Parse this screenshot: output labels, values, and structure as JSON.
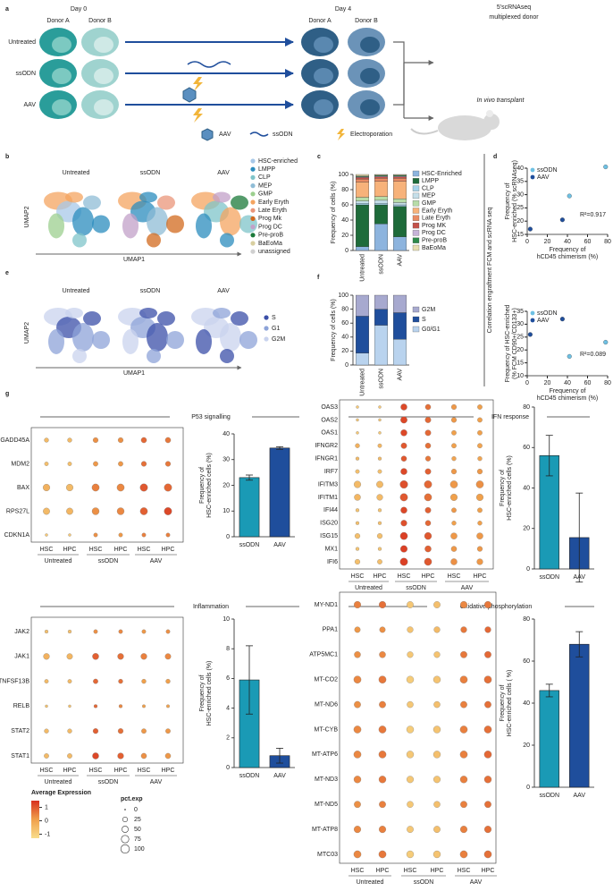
{
  "panels": [
    "a",
    "b",
    "c",
    "d",
    "e",
    "f",
    "g"
  ],
  "schematic": {
    "day0": "Day 0",
    "day4": "Day 4",
    "donors": [
      "Donor A",
      "Donor B",
      "Donor A",
      "Donor B"
    ],
    "conditions": [
      "Untreated",
      "ssODN",
      "AAV"
    ],
    "output_top": [
      "5'scRNAseq",
      "multiplexed donor"
    ],
    "output_bottom": "In vivo transplant",
    "legend": [
      "AAV",
      "ssODN",
      "Electroporation"
    ]
  },
  "umap_b": {
    "titles": [
      "Untreated",
      "ssODN",
      "AAV"
    ],
    "xlabel": "UMAP1",
    "ylabel": "UMAP2",
    "legend": [
      "HSC-enriched",
      "LMPP",
      "CLP",
      "MEP",
      "GMP",
      "Early Eryth",
      "Late Eryth",
      "Prog Mk",
      "Prog DC",
      "Pre-proB",
      "BaEoMa",
      "unassigned"
    ],
    "colors": [
      "#a8c8e8",
      "#2b8cbe",
      "#7fc4c9",
      "#8fbcd6",
      "#9ccf8f",
      "#f4a460",
      "#e9967a",
      "#d2691e",
      "#c2a0c8",
      "#1b7a3a",
      "#d8cfa0",
      "#d0d0d0"
    ]
  },
  "umap_e": {
    "titles": [
      "Untreated",
      "ssODN",
      "AAV"
    ],
    "xlabel": "UMAP1",
    "ylabel": "UMAP2",
    "legend": [
      "S",
      "G1",
      "G2M"
    ],
    "colors": [
      "#3b4fa8",
      "#8da3d8",
      "#c9d3ee"
    ]
  },
  "side_label": "Correlation engraftment FCM and scRNA seq",
  "expression_legend": {
    "title": "Average Expression",
    "ticks": [
      1,
      0,
      -1
    ],
    "lim": [
      -1.3,
      1.5
    ],
    "colors": [
      "#f8dd8c",
      "#f0a04b",
      "#d7301f"
    ]
  },
  "pct_legend": {
    "title": "pct.exp",
    "values": [
      0,
      25,
      50,
      75,
      100
    ]
  },
  "chart_data": [
    {
      "type": "bar",
      "stacked": true,
      "ylabel": "Frequency of cells (%)",
      "categories": [
        "Untreated",
        "ssODN",
        "AAV"
      ],
      "ylim": [
        0,
        100
      ],
      "yticks": [
        0,
        20,
        40,
        60,
        80,
        100
      ],
      "series": [
        {
          "name": "HSC-Enriched",
          "color": "#8db4de",
          "values": [
            5,
            35,
            18
          ]
        },
        {
          "name": "LMPP",
          "color": "#1e6b3a",
          "values": [
            55,
            25,
            40
          ]
        },
        {
          "name": "CLP",
          "color": "#a6d4ea",
          "values": [
            2,
            2,
            2
          ]
        },
        {
          "name": "MEP",
          "color": "#c5dfe9",
          "values": [
            3,
            4,
            3
          ]
        },
        {
          "name": "GMP",
          "color": "#b7dca8",
          "values": [
            5,
            5,
            5
          ]
        },
        {
          "name": "Early Eryth",
          "color": "#f7b27a",
          "values": [
            20,
            20,
            23
          ]
        },
        {
          "name": "Late Eryth",
          "color": "#e98b63",
          "values": [
            4,
            4,
            4
          ]
        },
        {
          "name": "Prog MK",
          "color": "#c4524a",
          "values": [
            2,
            2,
            2
          ]
        },
        {
          "name": "Prog DC",
          "color": "#c6b3d8",
          "values": [
            1,
            1,
            1
          ]
        },
        {
          "name": "Pre-proB",
          "color": "#2d8a4a",
          "values": [
            1,
            1,
            1
          ]
        },
        {
          "name": "BaEoMa",
          "color": "#e7dfb0",
          "values": [
            2,
            1,
            1
          ]
        }
      ]
    },
    {
      "type": "scatter",
      "xlabel": [
        "Frequency of",
        "hCD45 chimerism (%)"
      ],
      "ylabel": [
        "Frequency of",
        "HSC-enriched (% scRNAseq)"
      ],
      "xlim": [
        0,
        80
      ],
      "xticks": [
        0,
        20,
        40,
        60,
        80
      ],
      "ylim": [
        15,
        40
      ],
      "yticks": [
        15,
        20,
        25,
        30,
        35,
        40
      ],
      "annotation": "R²=0.917",
      "series": [
        {
          "name": "ssODN",
          "color": "#6ec1e4",
          "x": [
            42,
            78
          ],
          "values": [
            29.5,
            40.5
          ]
        },
        {
          "name": "AAV",
          "color": "#1f4e9c",
          "x": [
            3,
            35
          ],
          "values": [
            17,
            20.5
          ]
        }
      ]
    },
    {
      "type": "scatter",
      "xlabel": [
        "Frequency of",
        "hCD45 chimerism (%)"
      ],
      "ylabel": [
        "Frequency of HSC-enriched",
        "(% FCM CD90+/CD133+)"
      ],
      "xlim": [
        0,
        80
      ],
      "xticks": [
        0,
        20,
        40,
        60,
        80
      ],
      "ylim": [
        10,
        35
      ],
      "yticks": [
        10,
        15,
        20,
        25,
        30,
        35
      ],
      "annotation": "R²=0.089",
      "series": [
        {
          "name": "ssODN",
          "color": "#6ec1e4",
          "x": [
            42,
            78
          ],
          "values": [
            17.5,
            23
          ]
        },
        {
          "name": "AAV",
          "color": "#1f4e9c",
          "x": [
            3,
            35
          ],
          "values": [
            26,
            32
          ]
        }
      ]
    },
    {
      "type": "bar",
      "stacked": true,
      "ylabel": "Frequency of cells (%)",
      "categories": [
        "Untreated",
        "ssODN",
        "AAV"
      ],
      "ylim": [
        0,
        100
      ],
      "yticks": [
        0,
        20,
        40,
        60,
        80,
        100
      ],
      "series": [
        {
          "name": "G0/G1",
          "color": "#b9d3ee",
          "values": [
            17,
            57,
            37
          ]
        },
        {
          "name": "S",
          "color": "#1f4e9c",
          "values": [
            53,
            23,
            38
          ]
        },
        {
          "name": "G2M",
          "color": "#a7a9cf",
          "values": [
            30,
            20,
            25
          ]
        }
      ]
    },
    {
      "type": "dot",
      "title": "P53 signalling",
      "rows": [
        "GADD45A",
        "MDM2",
        "BAX",
        "RPS27L",
        "CDKN1A"
      ],
      "columns": [
        "HSC",
        "HPC",
        "HSC",
        "HPC",
        "HSC",
        "HPC"
      ],
      "groups": [
        "Untreated",
        "ssODN",
        "AAV"
      ],
      "size": [
        [
          20,
          20,
          30,
          30,
          35,
          35
        ],
        [
          15,
          15,
          25,
          25,
          30,
          30
        ],
        [
          60,
          60,
          70,
          70,
          75,
          75
        ],
        [
          55,
          55,
          65,
          65,
          70,
          75
        ],
        [
          5,
          5,
          15,
          15,
          15,
          15
        ]
      ],
      "expression": [
        [
          -0.5,
          -0.5,
          0.3,
          0.3,
          0.8,
          0.6
        ],
        [
          -0.6,
          -0.6,
          0.2,
          0.2,
          0.7,
          0.6
        ],
        [
          -0.3,
          -0.5,
          0.5,
          0.4,
          1,
          0.8
        ],
        [
          -0.5,
          -0.4,
          0.3,
          0.4,
          0.9,
          1.2
        ],
        [
          -0.8,
          -0.8,
          0.3,
          0.2,
          0.5,
          0.5
        ]
      ]
    },
    {
      "type": "bar",
      "ylabel": [
        "Frequency of",
        "HSC-enriched cells (%)"
      ],
      "categories": [
        "ssODN",
        "AAV"
      ],
      "values": [
        23,
        34.5
      ],
      "errors": [
        1,
        0.5
      ],
      "colors": [
        "#1a9ab5",
        "#1f4e9c"
      ],
      "ylim": [
        0,
        40
      ],
      "yticks": [
        0,
        10,
        20,
        30,
        40
      ]
    },
    {
      "type": "dot",
      "title": "IFN response",
      "rows": [
        "OAS3",
        "OAS2",
        "OAS1",
        "IFNGR2",
        "IFNGR1",
        "IRF7",
        "IFITM3",
        "IFITM1",
        "IFI44",
        "ISG20",
        "ISG15",
        "MX1",
        "IFI6"
      ],
      "columns": [
        "HSC",
        "HPC",
        "HSC",
        "HPC",
        "HSC",
        "HPC"
      ],
      "groups": [
        "Untreated",
        "ssODN",
        "AAV"
      ],
      "size": [
        [
          5,
          5,
          50,
          35,
          30,
          25
        ],
        [
          5,
          5,
          55,
          40,
          30,
          25
        ],
        [
          5,
          5,
          50,
          40,
          25,
          25
        ],
        [
          20,
          15,
          40,
          35,
          25,
          25
        ],
        [
          10,
          10,
          35,
          30,
          20,
          20
        ],
        [
          15,
          15,
          50,
          40,
          30,
          30
        ],
        [
          60,
          55,
          80,
          75,
          70,
          70
        ],
        [
          50,
          45,
          75,
          70,
          60,
          60
        ],
        [
          10,
          10,
          50,
          40,
          25,
          25
        ],
        [
          10,
          10,
          45,
          35,
          20,
          20
        ],
        [
          30,
          30,
          70,
          65,
          50,
          50
        ],
        [
          10,
          10,
          60,
          50,
          35,
          30
        ],
        [
          30,
          25,
          75,
          70,
          50,
          45
        ]
      ],
      "expression": [
        [
          -0.8,
          -0.8,
          1.2,
          0.7,
          0.2,
          0.1
        ],
        [
          -0.8,
          -0.8,
          1.2,
          0.8,
          0.2,
          0.1
        ],
        [
          -0.8,
          -0.8,
          1.2,
          0.8,
          0.1,
          0.1
        ],
        [
          -0.3,
          -0.4,
          1,
          0.7,
          0.1,
          0
        ],
        [
          -0.5,
          -0.5,
          1,
          0.6,
          0,
          0
        ],
        [
          -0.6,
          -0.6,
          1.2,
          0.9,
          0.2,
          0.2
        ],
        [
          -0.5,
          -0.5,
          1.1,
          0.8,
          0.2,
          0.3
        ],
        [
          -0.4,
          -0.5,
          1,
          0.7,
          0.1,
          0.1
        ],
        [
          -0.7,
          -0.7,
          1.2,
          0.9,
          0.2,
          0.1
        ],
        [
          -0.6,
          -0.6,
          1.1,
          0.8,
          0.1,
          0.1
        ],
        [
          -0.6,
          -0.6,
          1.3,
          1,
          0.2,
          0.2
        ],
        [
          -0.7,
          -0.7,
          1.3,
          0.9,
          0.2,
          0.2
        ],
        [
          -0.6,
          -0.6,
          1.3,
          1,
          0.3,
          0.2
        ]
      ]
    },
    {
      "type": "bar",
      "ylabel": [
        "Frequency of",
        "HSC-enriched cells (%)"
      ],
      "categories": [
        "ssODN",
        "AAV"
      ],
      "values": [
        56,
        15.5
      ],
      "errors": [
        10,
        22
      ],
      "colors": [
        "#1a9ab5",
        "#1f4e9c"
      ],
      "ylim": [
        0,
        80
      ],
      "yticks": [
        0,
        20,
        40,
        60,
        80
      ]
    },
    {
      "type": "dot",
      "title": "Inflammation",
      "rows": [
        "JAK2",
        "JAK1",
        "TNFSF13B",
        "RELB",
        "STAT2",
        "STAT1"
      ],
      "columns": [
        "HSC",
        "HPC",
        "HSC",
        "HPC",
        "HSC",
        "HPC"
      ],
      "groups": [
        "Untreated",
        "ssODN",
        "AAV"
      ],
      "size": [
        [
          10,
          10,
          15,
          15,
          15,
          15
        ],
        [
          45,
          40,
          50,
          45,
          45,
          40
        ],
        [
          15,
          15,
          25,
          20,
          20,
          20
        ],
        [
          5,
          5,
          10,
          10,
          8,
          8
        ],
        [
          20,
          20,
          30,
          30,
          25,
          25
        ],
        [
          25,
          25,
          50,
          45,
          35,
          35
        ]
      ],
      "expression": [
        [
          -0.6,
          -0.6,
          0.3,
          0.4,
          0.2,
          0.3
        ],
        [
          -0.3,
          -0.4,
          0.9,
          0.7,
          0.5,
          0.4
        ],
        [
          -0.5,
          -0.5,
          0.8,
          0.7,
          0.1,
          0.1
        ],
        [
          -0.7,
          -0.7,
          0.8,
          0.4,
          0.1,
          0
        ],
        [
          -0.5,
          -0.5,
          0.9,
          0.7,
          0.2,
          0.2
        ],
        [
          -0.5,
          -0.5,
          1.2,
          0.9,
          0.3,
          0.2
        ]
      ]
    },
    {
      "type": "bar",
      "ylabel": [
        "Frequency of",
        "HSC-enriched cells (%)"
      ],
      "categories": [
        "ssODN",
        "AAV"
      ],
      "values": [
        5.9,
        0.8
      ],
      "errors": [
        2.3,
        0.5
      ],
      "colors": [
        "#1a9ab5",
        "#1f4e9c"
      ],
      "ylim": [
        0,
        10
      ],
      "yticks": [
        0,
        2,
        4,
        6,
        8,
        10
      ]
    },
    {
      "type": "dot",
      "title": "Oxidative phosphorylation",
      "rows": [
        "MY-ND1",
        "PPA1",
        "ATP5MC1",
        "MT-CO2",
        "MT-ND6",
        "MT-CYB",
        "MT-ATP6",
        "MT-ND3",
        "MT-ND5",
        "MT-ATP8",
        "MTC03"
      ],
      "columns": [
        "HSC",
        "HPC",
        "HSC",
        "HPC",
        "HSC",
        "HPC"
      ],
      "groups": [
        "Untreated",
        "ssODN",
        "AAV"
      ],
      "size": [
        [
          60,
          60,
          55,
          55,
          60,
          60
        ],
        [
          40,
          40,
          45,
          45,
          45,
          45
        ],
        [
          50,
          50,
          45,
          45,
          55,
          55
        ],
        [
          70,
          70,
          65,
          65,
          70,
          70
        ],
        [
          55,
          55,
          50,
          50,
          55,
          55
        ],
        [
          70,
          70,
          65,
          65,
          70,
          70
        ],
        [
          70,
          70,
          65,
          65,
          70,
          70
        ],
        [
          65,
          65,
          60,
          60,
          65,
          65
        ],
        [
          55,
          55,
          50,
          50,
          55,
          55
        ],
        [
          60,
          60,
          55,
          55,
          60,
          60
        ],
        [
          70,
          70,
          65,
          65,
          70,
          70
        ]
      ],
      "expression": [
        [
          0.5,
          0.7,
          -0.8,
          -0.6,
          0.4,
          0.6
        ],
        [
          0.2,
          0.3,
          -0.7,
          -0.5,
          0.6,
          0.8
        ],
        [
          0.3,
          0.4,
          -0.8,
          -0.7,
          0.6,
          0.8
        ],
        [
          0.4,
          0.6,
          -0.9,
          -0.7,
          0.5,
          0.7
        ],
        [
          0.3,
          0.5,
          -0.8,
          -0.6,
          0.5,
          0.7
        ],
        [
          0.4,
          0.6,
          -0.9,
          -0.7,
          0.5,
          0.7
        ],
        [
          0.4,
          0.6,
          -0.8,
          -0.6,
          0.5,
          0.8
        ],
        [
          0.4,
          0.6,
          -0.8,
          -0.7,
          0.5,
          0.7
        ],
        [
          0.3,
          0.5,
          -0.8,
          -0.6,
          0.5,
          0.7
        ],
        [
          0.4,
          0.5,
          -0.8,
          -0.6,
          0.5,
          0.7
        ],
        [
          0.4,
          0.6,
          -0.9,
          -0.7,
          0.5,
          0.7
        ]
      ]
    },
    {
      "type": "bar",
      "ylabel": [
        "Frequency of",
        "HSC-enriched cells ( %)"
      ],
      "categories": [
        "ssODN",
        "AAV"
      ],
      "values": [
        46,
        68
      ],
      "errors": [
        3,
        6
      ],
      "colors": [
        "#1a9ab5",
        "#1f4e9c"
      ],
      "ylim": [
        0,
        80
      ],
      "yticks": [
        0,
        20,
        40,
        60,
        80
      ]
    }
  ]
}
